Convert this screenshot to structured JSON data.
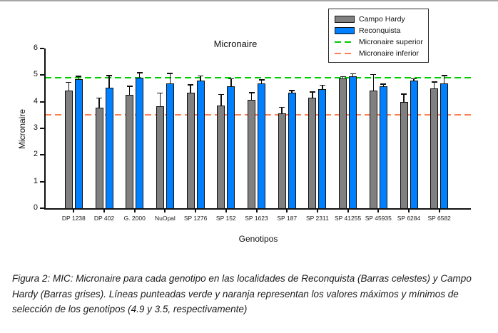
{
  "figure": {
    "caption": "Figura 2: MIC: Micronaire para cada genotipo en las localidades de Reconquista (Barras celestes) y Campo Hardy (Barras grises). Líneas punteadas verde y naranja representan los valores máximos y mínimos de selección de los genotipos (4.9 y 3.5, respectivamente)"
  },
  "chart_data": {
    "type": "bar",
    "title": "Micronaire",
    "xlabel": "Genotipos",
    "ylabel": "Micronaire",
    "ylim": [
      0,
      6
    ],
    "yticks": [
      0,
      1,
      2,
      3,
      4,
      5,
      6
    ],
    "grid": false,
    "legend_position": "top-right",
    "categories": [
      "DP 1238",
      "DP 402",
      "G. 2000",
      "NuOpal",
      "SP 1276",
      "SP 152",
      "SP 1623",
      "SP 187",
      "SP 2311",
      "SP 41255",
      "SP 45935",
      "SP 6284",
      "SP 6582"
    ],
    "series": [
      {
        "name": "Campo Hardy",
        "color": "#808080",
        "values": [
          4.42,
          3.78,
          4.25,
          3.82,
          4.33,
          3.85,
          4.07,
          3.56,
          4.16,
          4.88,
          4.41,
          3.98,
          4.49
        ],
        "errors": [
          0.3,
          0.35,
          0.33,
          0.5,
          0.3,
          0.42,
          0.26,
          0.23,
          0.2,
          0.05,
          0.6,
          0.3,
          0.24
        ]
      },
      {
        "name": "Reconquista",
        "color": "#0080FF",
        "values": [
          4.86,
          4.53,
          4.9,
          4.68,
          4.8,
          4.58,
          4.7,
          4.33,
          4.48,
          4.95,
          4.58,
          4.79,
          4.68
        ],
        "errors": [
          0.09,
          0.45,
          0.18,
          0.38,
          0.16,
          0.28,
          0.12,
          0.08,
          0.13,
          0.09,
          0.08,
          0.06,
          0.3
        ]
      }
    ],
    "reference_lines": [
      {
        "label": "Micronaire superior",
        "value": 4.9,
        "color": "#00CC00",
        "style": "dashed"
      },
      {
        "label": "Micronaire inferior",
        "value": 3.5,
        "color": "#FF7F50",
        "style": "dashed"
      }
    ]
  }
}
